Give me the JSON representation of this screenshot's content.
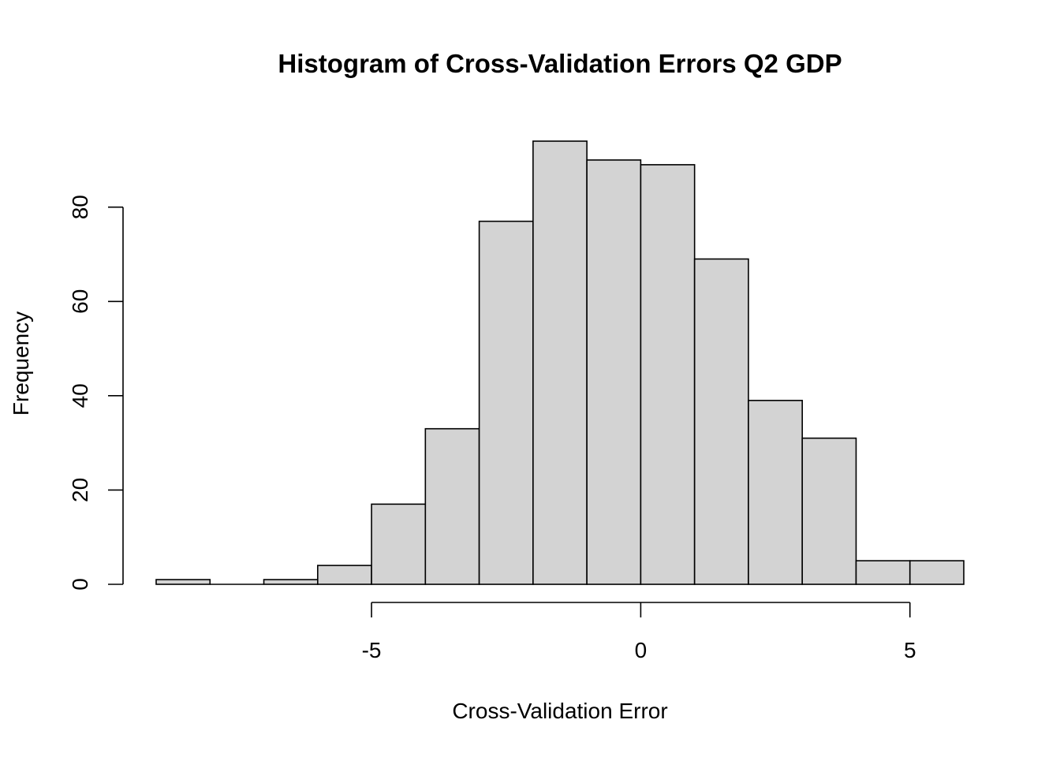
{
  "chart_data": {
    "type": "bar",
    "title": "Histogram of Cross-Validation Errors Q2 GDP",
    "xlabel": "Cross-Validation Error",
    "ylabel": "Frequency",
    "bins": [
      {
        "from": -9,
        "to": -8,
        "count": 1
      },
      {
        "from": -8,
        "to": -7,
        "count": 0
      },
      {
        "from": -7,
        "to": -6,
        "count": 1
      },
      {
        "from": -6,
        "to": -5,
        "count": 4
      },
      {
        "from": -5,
        "to": -4,
        "count": 17
      },
      {
        "from": -4,
        "to": -3,
        "count": 33
      },
      {
        "from": -3,
        "to": -2,
        "count": 77
      },
      {
        "from": -2,
        "to": -1,
        "count": 94
      },
      {
        "from": -1,
        "to": 0,
        "count": 90
      },
      {
        "from": 0,
        "to": 1,
        "count": 89
      },
      {
        "from": 1,
        "to": 2,
        "count": 69
      },
      {
        "from": 2,
        "to": 3,
        "count": 39
      },
      {
        "from": 3,
        "to": 4,
        "count": 31
      },
      {
        "from": 4,
        "to": 5,
        "count": 5
      },
      {
        "from": 5,
        "to": 6,
        "count": 5
      }
    ],
    "xticks": [
      -5,
      0,
      5
    ],
    "yticks": [
      0,
      20,
      40,
      60,
      80
    ],
    "xlim": [
      -9,
      6
    ],
    "ylim": [
      0,
      94
    ],
    "grid": false,
    "bar_color": "#d3d3d3",
    "edge_color": "#000000"
  }
}
